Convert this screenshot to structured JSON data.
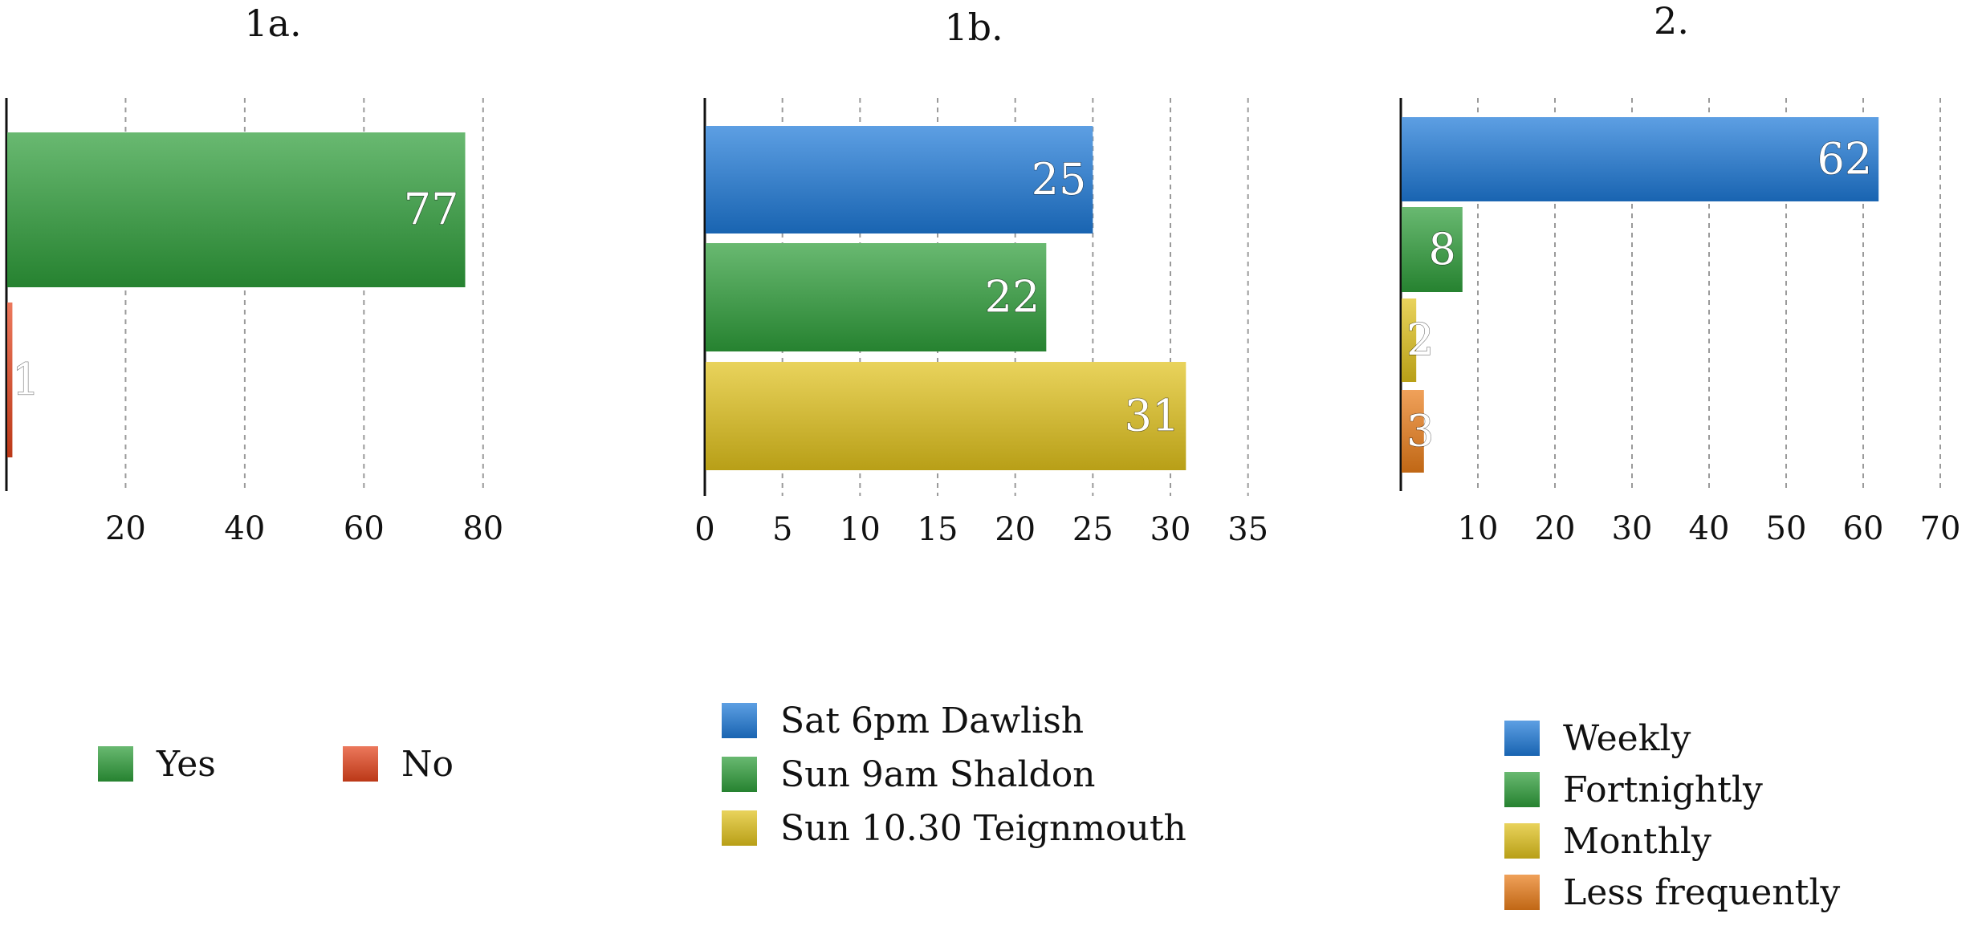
{
  "chart_data": [
    {
      "type": "bar",
      "orientation": "horizontal",
      "title": "1a.",
      "categories": [
        "Yes",
        "No"
      ],
      "values": [
        77,
        1
      ],
      "colors": [
        "#2e9e3a",
        "#e4441c"
      ],
      "xlim": [
        0,
        90
      ],
      "xticks": [
        20,
        40,
        60,
        80
      ],
      "grid": true,
      "legend": {
        "placement": "bottom",
        "layout": "row",
        "entries": [
          {
            "label": "Yes",
            "color": "#2e9e3a"
          },
          {
            "label": "No",
            "color": "#e4441c"
          }
        ]
      }
    },
    {
      "type": "bar",
      "orientation": "horizontal",
      "title": "1b.",
      "categories": [
        "Sat 6pm Dawlish",
        "Sun 9am Shaldon",
        "Sun 10.30 Teignmouth"
      ],
      "values": [
        25,
        22,
        31
      ],
      "colors": [
        "#1e7ad8",
        "#2e9e3a",
        "#e0c21c"
      ],
      "xlim": [
        0,
        36
      ],
      "xticks": [
        0,
        5,
        10,
        15,
        20,
        25,
        30,
        35
      ],
      "grid": true,
      "legend": {
        "placement": "bottom",
        "layout": "column",
        "entries": [
          {
            "label": "Sat 6pm Dawlish",
            "color": "#1e7ad8"
          },
          {
            "label": "Sun 9am Shaldon",
            "color": "#2e9e3a"
          },
          {
            "label": "Sun 10.30 Teignmouth",
            "color": "#e0c21c"
          }
        ]
      }
    },
    {
      "type": "bar",
      "orientation": "horizontal",
      "title": "2.",
      "categories": [
        "Weekly",
        "Fortnightly",
        "Monthly",
        "Less frequently"
      ],
      "values": [
        62,
        8,
        2,
        3
      ],
      "colors": [
        "#1e7ad8",
        "#2e9e3a",
        "#e0c21c",
        "#ea7d1a"
      ],
      "xlim": [
        0,
        70
      ],
      "xticks": [
        10,
        20,
        30,
        40,
        50,
        60,
        70
      ],
      "grid": true,
      "legend": {
        "placement": "bottom",
        "layout": "column",
        "entries": [
          {
            "label": "Weekly",
            "color": "#1e7ad8"
          },
          {
            "label": "Fortnightly",
            "color": "#2e9e3a"
          },
          {
            "label": "Monthly",
            "color": "#e0c21c"
          },
          {
            "label": "Less frequently",
            "color": "#ea7d1a"
          }
        ]
      }
    }
  ]
}
